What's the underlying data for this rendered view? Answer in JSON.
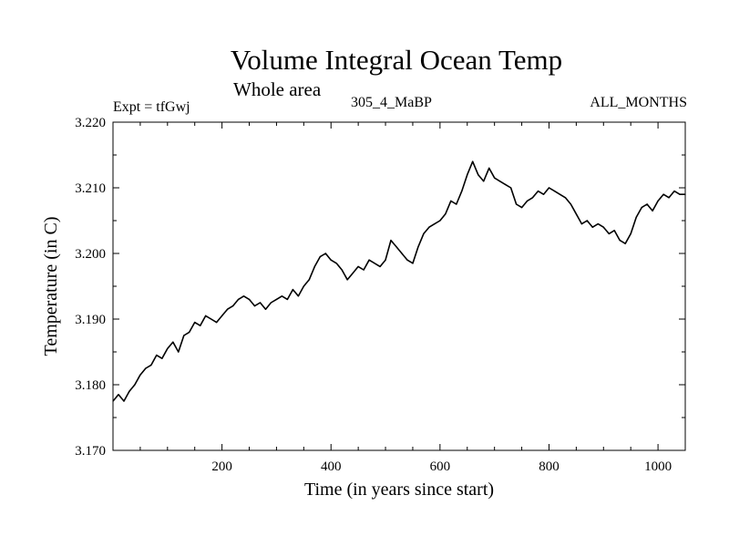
{
  "header": {
    "title": "Volume Integral Ocean Temp",
    "subtitle": "Whole area",
    "left_label": "Expt = tfGwj",
    "center_label": "305_4_MaBP",
    "right_label": "ALL_MONTHS"
  },
  "chart_data": {
    "type": "line",
    "title": "Volume Integral Ocean Temp",
    "subtitle": "Whole area",
    "xlabel": "Time (in years since start)",
    "ylabel": "Temperature (in C)",
    "xlim": [
      0,
      1050
    ],
    "ylim": [
      3.17,
      3.22
    ],
    "x_ticks": [
      200,
      400,
      600,
      800,
      1000
    ],
    "x_tick_labels": [
      "200",
      "400",
      "600",
      "800",
      "1000"
    ],
    "y_ticks": [
      3.17,
      3.18,
      3.19,
      3.2,
      3.21,
      3.22
    ],
    "y_tick_labels": [
      "3.170",
      "3.180",
      "3.190",
      "3.200",
      "3.210",
      "3.220"
    ],
    "grid": false,
    "series": [
      {
        "name": "Volume Integral Ocean Temp",
        "x": [
          0,
          10,
          20,
          30,
          40,
          50,
          60,
          70,
          80,
          90,
          100,
          110,
          120,
          130,
          140,
          150,
          160,
          170,
          180,
          190,
          200,
          210,
          220,
          230,
          240,
          250,
          260,
          270,
          280,
          290,
          300,
          310,
          320,
          330,
          340,
          350,
          360,
          370,
          380,
          390,
          400,
          410,
          420,
          430,
          440,
          450,
          460,
          470,
          480,
          490,
          500,
          510,
          520,
          530,
          540,
          550,
          560,
          570,
          580,
          590,
          600,
          610,
          620,
          630,
          640,
          650,
          660,
          670,
          680,
          690,
          700,
          710,
          720,
          730,
          740,
          750,
          760,
          770,
          780,
          790,
          800,
          810,
          820,
          830,
          840,
          850,
          860,
          870,
          880,
          890,
          900,
          910,
          920,
          930,
          940,
          950,
          960,
          970,
          980,
          990,
          1000,
          1010,
          1020,
          1030,
          1040,
          1050
        ],
        "values": [
          3.1775,
          3.1785,
          3.1775,
          3.179,
          3.18,
          3.1815,
          3.1825,
          3.183,
          3.1845,
          3.184,
          3.1855,
          3.1865,
          3.185,
          3.1875,
          3.188,
          3.1895,
          3.189,
          3.1905,
          3.19,
          3.1895,
          3.1905,
          3.1915,
          3.192,
          3.193,
          3.1935,
          3.193,
          3.192,
          3.1925,
          3.1915,
          3.1925,
          3.193,
          3.1935,
          3.193,
          3.1945,
          3.1935,
          3.195,
          3.196,
          3.198,
          3.1995,
          3.2,
          3.199,
          3.1985,
          3.1975,
          3.196,
          3.197,
          3.198,
          3.1975,
          3.199,
          3.1985,
          3.198,
          3.199,
          3.202,
          3.201,
          3.2,
          3.199,
          3.1985,
          3.201,
          3.203,
          3.204,
          3.2045,
          3.205,
          3.206,
          3.208,
          3.2075,
          3.2095,
          3.212,
          3.214,
          3.212,
          3.211,
          3.213,
          3.2115,
          3.211,
          3.2105,
          3.21,
          3.2075,
          3.207,
          3.208,
          3.2085,
          3.2095,
          3.209,
          3.21,
          3.2095,
          3.209,
          3.2085,
          3.2075,
          3.206,
          3.2045,
          3.205,
          3.204,
          3.2045,
          3.204,
          3.203,
          3.2035,
          3.202,
          3.2015,
          3.203,
          3.2055,
          3.207,
          3.2075,
          3.2065,
          3.208,
          3.209,
          3.2085,
          3.2095,
          3.209,
          3.209
        ]
      }
    ]
  }
}
